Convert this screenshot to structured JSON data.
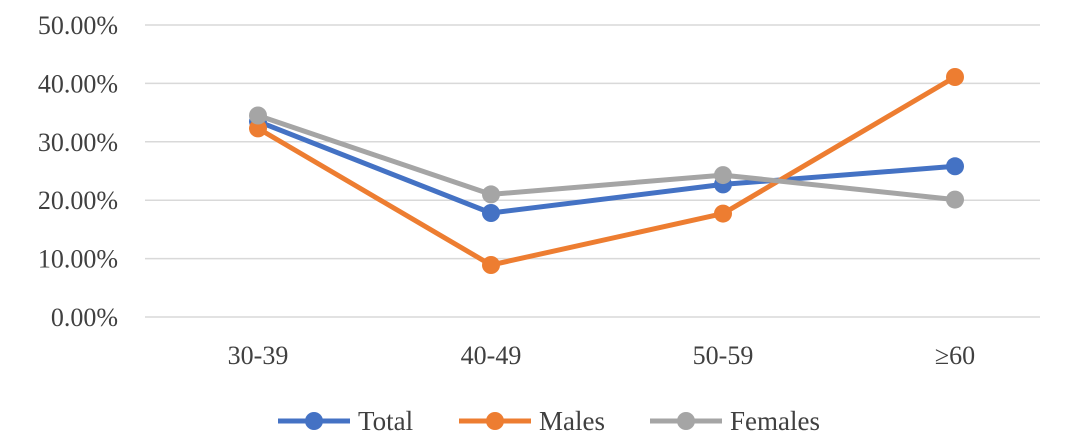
{
  "chart_data": {
    "type": "line",
    "categories": [
      "30-39",
      "40-49",
      "50-59",
      "≥60"
    ],
    "series": [
      {
        "name": "Total",
        "color": "#4472C4",
        "values": [
          33.5,
          17.8,
          22.7,
          25.8
        ]
      },
      {
        "name": "Males",
        "color": "#ED7D31",
        "values": [
          32.3,
          8.9,
          17.7,
          41.1
        ]
      },
      {
        "name": "Females",
        "color": "#A5A5A5",
        "values": [
          34.5,
          21.0,
          24.3,
          20.1
        ]
      }
    ],
    "y_ticks": [
      "0.00%",
      "10.00%",
      "20.00%",
      "30.00%",
      "40.00%",
      "50.00%"
    ],
    "ylim": [
      0,
      50
    ],
    "y_unit": "percent",
    "grid": true,
    "gridline_color": "#D9D9D9",
    "legend_position": "bottom",
    "title": "",
    "xlabel": "",
    "ylabel": ""
  }
}
